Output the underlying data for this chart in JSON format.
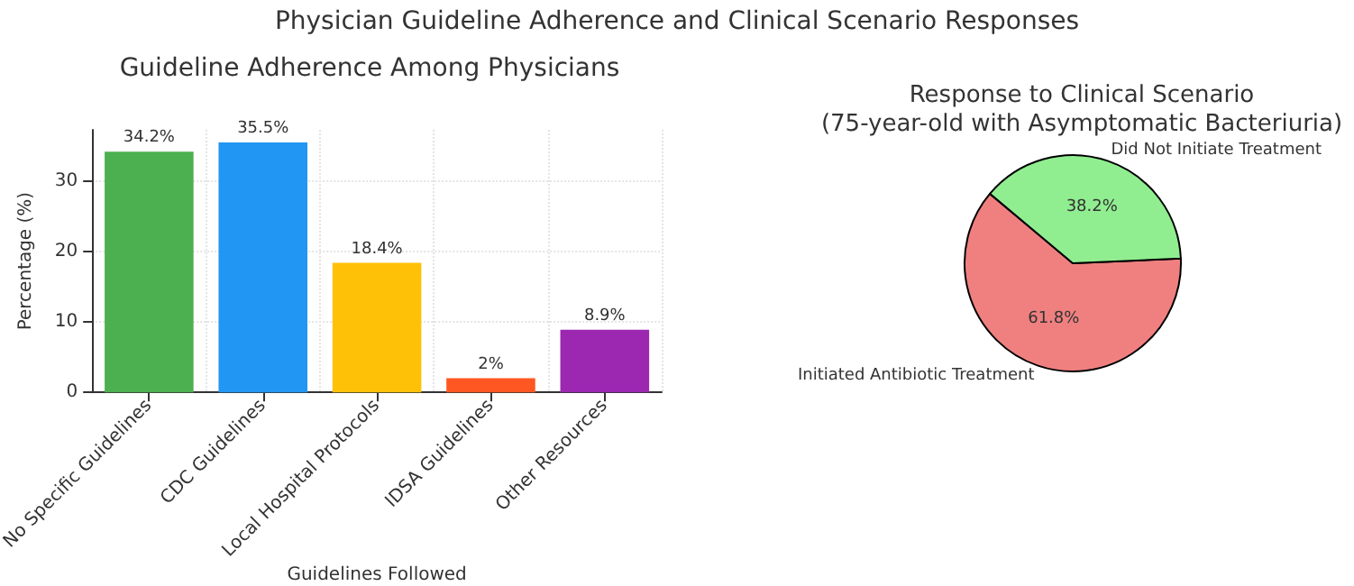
{
  "chart_data": [
    {
      "type": "bar",
      "title": "Guideline Adherence Among Physicians",
      "annotations": [
        "Physician Guideline Adherence and Clinical Scenario Responses"
      ],
      "xlabel": "Guidelines Followed",
      "ylabel": "Percentage (%)",
      "categories": [
        "No Specific Guidelines",
        "CDC Guidelines",
        "Local Hospital Protocols",
        "IDSA Guidelines",
        "Other Resources"
      ],
      "values": [
        34.2,
        35.5,
        18.4,
        2,
        8.9
      ],
      "colors": [
        "#4caf50",
        "#2196f3",
        "#ffc107",
        "#ff5722",
        "#9c27b0"
      ],
      "value_labels": [
        "34.2%",
        "35.5%",
        "18.4%",
        "2%",
        "8.9%"
      ],
      "ylim": [
        0,
        37.3
      ],
      "yticks": [
        0,
        10,
        20,
        30
      ],
      "grid": true
    },
    {
      "type": "pie",
      "title": "Response to Clinical Scenario\n(75-year-old with Asymptomatic Bacteriuria)",
      "categories": [
        "Initiated Antibiotic Treatment",
        "Did Not Initiate Treatment"
      ],
      "values": [
        61.8,
        38.2
      ],
      "colors": [
        "#f08080",
        "#90ee90"
      ],
      "value_labels": [
        "61.8%",
        "38.2%"
      ]
    }
  ]
}
